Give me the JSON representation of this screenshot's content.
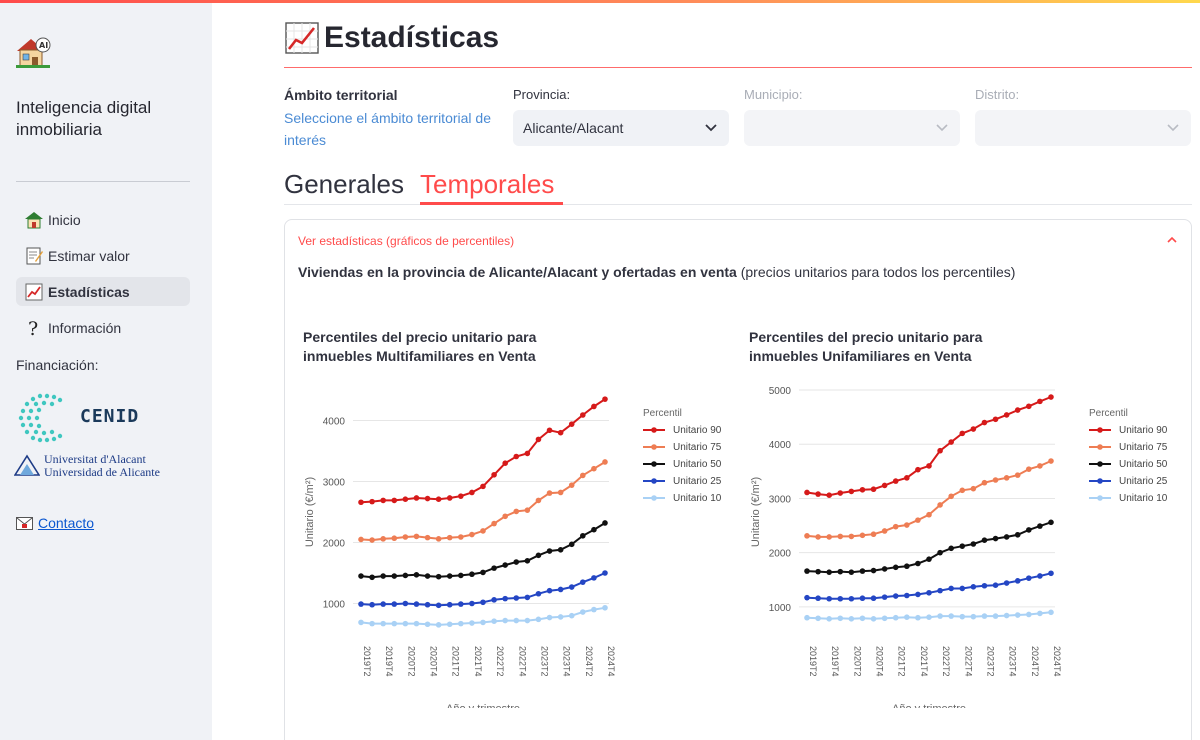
{
  "sidebar": {
    "app_title": "Inteligencia digital inmobiliaria",
    "nav": [
      {
        "label": "Inicio",
        "icon": "house-icon",
        "active": false
      },
      {
        "label": "Estimar valor",
        "icon": "memo-icon",
        "active": false
      },
      {
        "label": "Estadísticas",
        "icon": "chart-icon",
        "active": true
      },
      {
        "label": "Información",
        "icon": "question-icon",
        "active": false
      }
    ],
    "funding_label": "Financiación:",
    "cenid_text": "CENID",
    "ua_line1": "Universitat d'Alacant",
    "ua_line2": "Universidad de Alicante",
    "contact_label": "Contacto"
  },
  "header": {
    "title": "Estadísticas"
  },
  "filters": {
    "ambito_title": "Ámbito territorial",
    "ambito_desc": "Seleccione el ámbito territorial de interés",
    "provincia_label": "Provincia:",
    "provincia_value": "Alicante/Alacant",
    "municipio_label": "Municipio:",
    "municipio_value": "",
    "distrito_label": "Distrito:",
    "distrito_value": ""
  },
  "tabs": [
    {
      "label": "Generales",
      "active": false
    },
    {
      "label": "Temporales",
      "active": true
    }
  ],
  "expander": {
    "label": "Ver estadísticas (gráficos de percentiles)",
    "subtitle_bold": "Viviendas en la provincia de Alicante/Alacant y ofertadas en venta",
    "subtitle_rest": " (precios unitarios para todos los percentiles)"
  },
  "colors": {
    "accent": "#ff4b4b",
    "Unitario 90": "#d61a1a",
    "Unitario 75": "#ee7d54",
    "Unitario 50": "#111111",
    "Unitario 25": "#2446c4",
    "Unitario 10": "#a9d1f5"
  },
  "chart_data": [
    {
      "type": "line",
      "title": "Percentiles del precio unitario para inmuebles Multifamiliares en Venta",
      "xlabel": "Año y trimestre",
      "ylabel": "Unitario (€/m²)",
      "legend_title": "Percentil",
      "legend_position": "right",
      "grid": true,
      "ylim": [
        500,
        4500
      ],
      "yticks": [
        1000,
        2000,
        3000,
        4000
      ],
      "x": [
        "2019T2",
        "2019T3",
        "2019T4",
        "2020T1",
        "2020T2",
        "2020T3",
        "2020T4",
        "2021T1",
        "2021T2",
        "2021T3",
        "2021T4",
        "2022T1",
        "2022T2",
        "2022T3",
        "2022T4",
        "2023T1",
        "2023T2",
        "2023T3",
        "2023T4",
        "2024T1",
        "2024T2",
        "2024T3",
        "2024T4"
      ],
      "xtick_labels": [
        "2019T2",
        "2019T4",
        "2020T2",
        "2020T4",
        "2021T2",
        "2021T4",
        "2022T2",
        "2022T4",
        "2023T2",
        "2023T4",
        "2024T2",
        "2024T4"
      ],
      "series": [
        {
          "name": "Unitario 90",
          "values": [
            2660,
            2670,
            2690,
            2690,
            2710,
            2730,
            2720,
            2710,
            2730,
            2760,
            2820,
            2920,
            3110,
            3300,
            3410,
            3460,
            3690,
            3840,
            3800,
            3940,
            4090,
            4230,
            4350
          ]
        },
        {
          "name": "Unitario 75",
          "values": [
            2050,
            2040,
            2060,
            2070,
            2090,
            2100,
            2080,
            2060,
            2080,
            2090,
            2130,
            2190,
            2310,
            2430,
            2510,
            2530,
            2690,
            2810,
            2820,
            2940,
            3100,
            3210,
            3320
          ]
        },
        {
          "name": "Unitario 50",
          "values": [
            1450,
            1430,
            1450,
            1450,
            1460,
            1470,
            1450,
            1440,
            1450,
            1460,
            1480,
            1510,
            1580,
            1630,
            1680,
            1700,
            1790,
            1860,
            1880,
            1970,
            2110,
            2210,
            2320
          ]
        },
        {
          "name": "Unitario 25",
          "values": [
            990,
            980,
            990,
            990,
            1000,
            990,
            980,
            970,
            980,
            990,
            1000,
            1020,
            1060,
            1080,
            1090,
            1100,
            1160,
            1210,
            1230,
            1270,
            1350,
            1420,
            1500
          ]
        },
        {
          "name": "Unitario 10",
          "values": [
            690,
            670,
            670,
            670,
            670,
            670,
            660,
            650,
            660,
            670,
            680,
            690,
            710,
            720,
            720,
            720,
            740,
            770,
            780,
            800,
            860,
            900,
            930
          ]
        }
      ]
    },
    {
      "type": "line",
      "title": "Percentiles del precio unitario para inmuebles Unifamiliares en Venta",
      "xlabel": "Año y trimestre",
      "ylabel": "Unitario (€/m²)",
      "legend_title": "Percentil",
      "legend_position": "right",
      "grid": true,
      "ylim": [
        500,
        5000
      ],
      "yticks": [
        1000,
        2000,
        3000,
        4000,
        5000
      ],
      "x": [
        "2019T2",
        "2019T3",
        "2019T4",
        "2020T1",
        "2020T2",
        "2020T3",
        "2020T4",
        "2021T1",
        "2021T2",
        "2021T3",
        "2021T4",
        "2022T1",
        "2022T2",
        "2022T3",
        "2022T4",
        "2023T1",
        "2023T2",
        "2023T3",
        "2023T4",
        "2024T1",
        "2024T2",
        "2024T3",
        "2024T4"
      ],
      "xtick_labels": [
        "2019T2",
        "2019T4",
        "2020T2",
        "2020T4",
        "2021T2",
        "2021T4",
        "2022T2",
        "2022T4",
        "2023T2",
        "2023T4",
        "2024T2",
        "2024T4"
      ],
      "series": [
        {
          "name": "Unitario 90",
          "values": [
            3110,
            3080,
            3060,
            3100,
            3130,
            3160,
            3170,
            3240,
            3320,
            3380,
            3530,
            3600,
            3880,
            4040,
            4200,
            4280,
            4400,
            4460,
            4540,
            4630,
            4700,
            4790,
            4870
          ]
        },
        {
          "name": "Unitario 75",
          "values": [
            2310,
            2290,
            2290,
            2300,
            2300,
            2320,
            2340,
            2400,
            2480,
            2510,
            2600,
            2700,
            2880,
            3040,
            3150,
            3180,
            3290,
            3340,
            3380,
            3430,
            3540,
            3600,
            3690
          ]
        },
        {
          "name": "Unitario 50",
          "values": [
            1660,
            1650,
            1640,
            1650,
            1640,
            1660,
            1670,
            1700,
            1730,
            1750,
            1800,
            1880,
            2000,
            2080,
            2120,
            2160,
            2230,
            2260,
            2290,
            2330,
            2420,
            2490,
            2560
          ]
        },
        {
          "name": "Unitario 25",
          "values": [
            1170,
            1160,
            1150,
            1150,
            1150,
            1160,
            1160,
            1180,
            1200,
            1210,
            1230,
            1260,
            1300,
            1340,
            1340,
            1370,
            1390,
            1400,
            1440,
            1480,
            1530,
            1570,
            1620
          ]
        },
        {
          "name": "Unitario 10",
          "values": [
            800,
            790,
            780,
            790,
            780,
            790,
            780,
            790,
            800,
            810,
            800,
            810,
            830,
            830,
            820,
            820,
            830,
            830,
            840,
            850,
            860,
            880,
            900
          ]
        }
      ]
    }
  ]
}
